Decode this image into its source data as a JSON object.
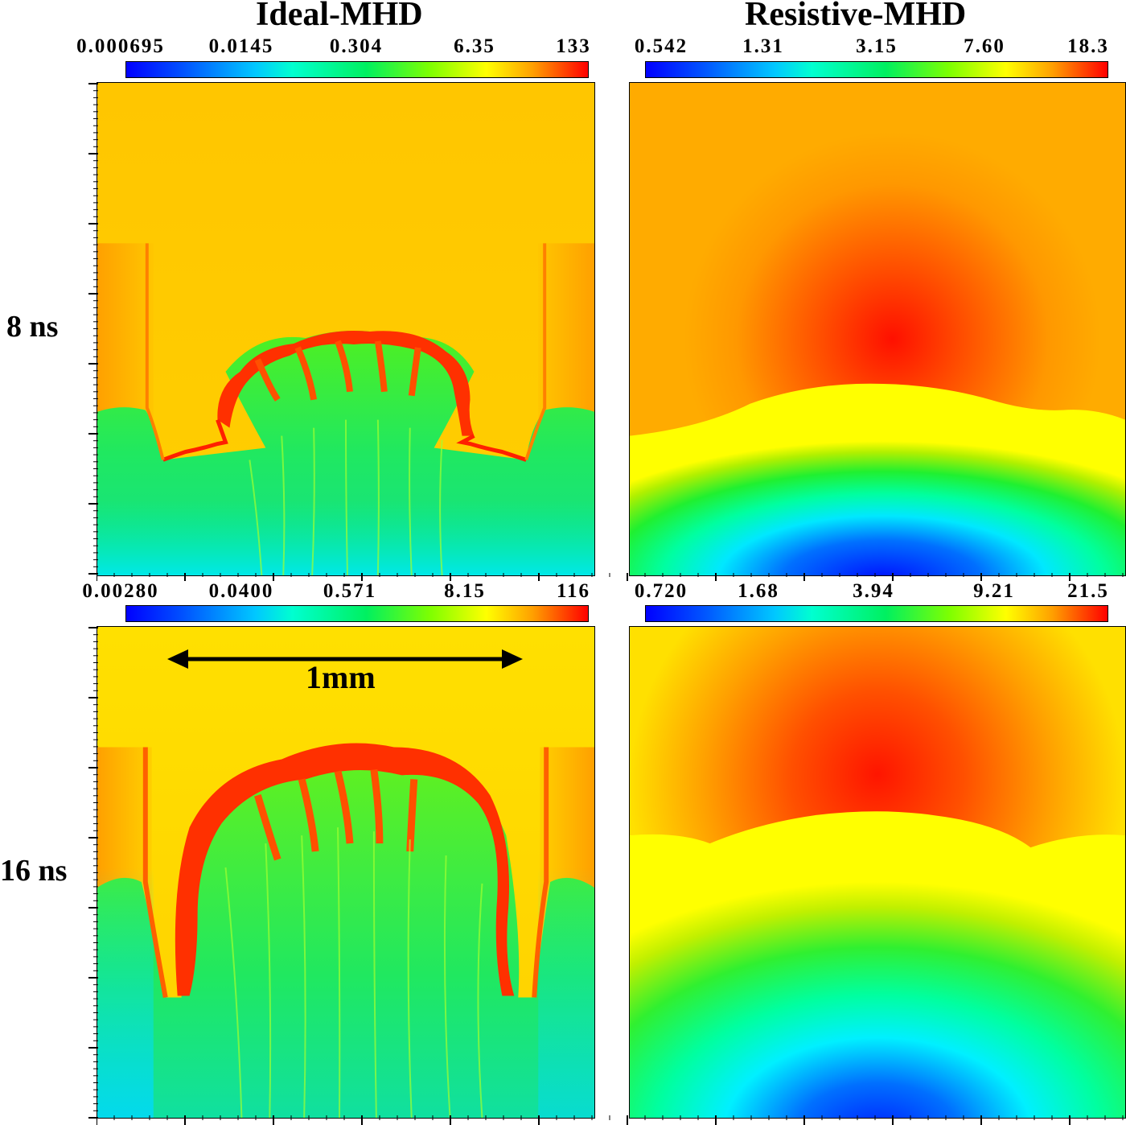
{
  "chart_data": [
    {
      "type": "heatmap",
      "title": "Ideal-MHD",
      "row_label": "8 ns",
      "colorbar": {
        "scale": "log",
        "ticks": [
          "0.000695",
          "0.0145",
          "0.304",
          "6.35",
          "133"
        ],
        "colormap": "jet"
      },
      "grid": false
    },
    {
      "type": "heatmap",
      "title": "Resistive-MHD",
      "row_label": "8 ns",
      "colorbar": {
        "scale": "log",
        "ticks": [
          "0.542",
          "1.31",
          "3.15",
          "7.60",
          "18.3"
        ],
        "colormap": "jet"
      },
      "grid": false
    },
    {
      "type": "heatmap",
      "title": "Ideal-MHD",
      "row_label": "16 ns",
      "colorbar": {
        "scale": "log",
        "ticks": [
          "0.00280",
          "0.0400",
          "0.571",
          "8.15",
          "116"
        ],
        "colormap": "jet"
      },
      "scale_bar": "1mm",
      "grid": false
    },
    {
      "type": "heatmap",
      "title": "Resistive-MHD",
      "row_label": "16 ns",
      "colorbar": {
        "scale": "log",
        "ticks": [
          "0.720",
          "1.68",
          "3.94",
          "9.21",
          "21.5"
        ],
        "colormap": "jet"
      },
      "grid": false
    }
  ],
  "headers": {
    "left": "Ideal-MHD",
    "right": "Resistive-MHD"
  },
  "rows": {
    "top": "8 ns",
    "bottom": "16 ns"
  },
  "scale_bar_label": "1mm",
  "colors": {
    "red": "#ff0000",
    "orange": "#ffa500",
    "yellow": "#ffd800",
    "green": "#00e060",
    "cyan": "#00ffff",
    "blue": "#0000ff"
  }
}
